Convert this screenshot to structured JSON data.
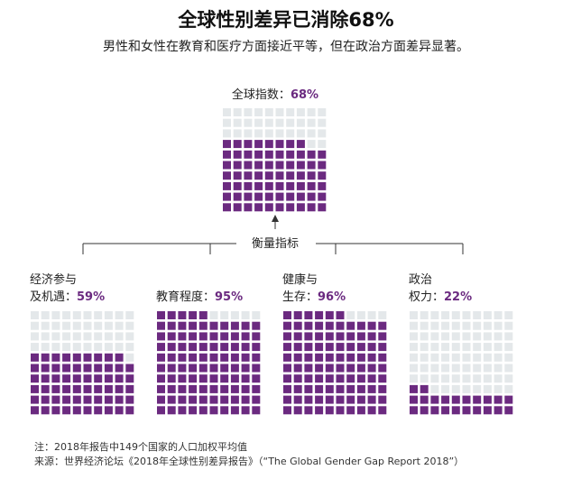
{
  "title": "全球性别差异已消除68%",
  "subtitle": "男性和女性在教育和医疗方面接近平等，但在政治方面差异显著。",
  "colors": {
    "filled": "#6b2a80",
    "empty": "#e4e8ea",
    "line": "#333333"
  },
  "chart_data": [
    {
      "type": "waffle",
      "label": "全球指数：",
      "value": 68,
      "value_label": "68%"
    },
    {
      "type": "waffle",
      "label_line1": "经济参与",
      "label_line2": "及机遇：",
      "value": 59,
      "value_label": "59%"
    },
    {
      "type": "waffle",
      "label": "教育程度：",
      "value": 95,
      "value_label": "95%"
    },
    {
      "type": "waffle",
      "label_line1": "健康与",
      "label_line2": "生存：",
      "value": 96,
      "value_label": "96%"
    },
    {
      "type": "waffle",
      "label_line1": "政治",
      "label_line2": "权力：",
      "value": 22,
      "value_label": "22%"
    }
  ],
  "measure_label": "衡量指标",
  "footnote": {
    "note": "注：2018年报告中149个国家的人口加权平均值",
    "source": "来源：世界经济论坛《2018年全球性别差异报告》（“The Global Gender Gap Report 2018”）"
  }
}
